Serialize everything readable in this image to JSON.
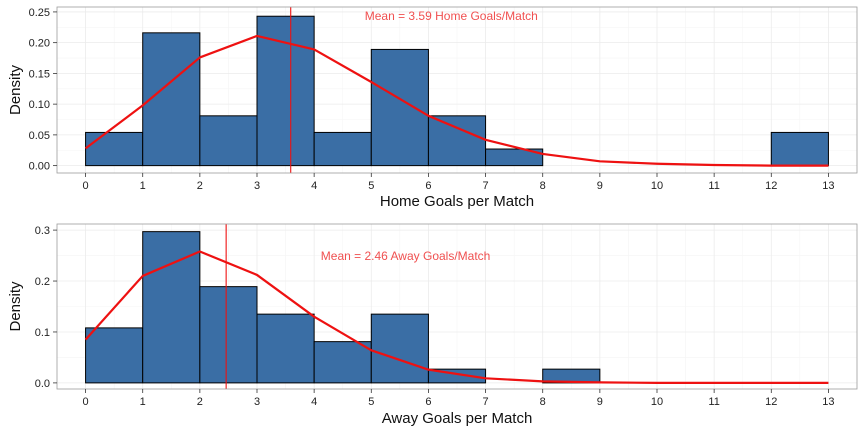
{
  "chart_data": [
    {
      "type": "bar",
      "xlabel": "Home Goals per Match",
      "ylabel": "Density",
      "xlim": [
        -0.5,
        13.5
      ],
      "ylim": [
        -0.012,
        0.258
      ],
      "x_ticks": [
        0,
        1,
        2,
        3,
        4,
        5,
        6,
        7,
        8,
        9,
        10,
        11,
        12,
        13
      ],
      "y_ticks": [
        0.0,
        0.05,
        0.1,
        0.15,
        0.2,
        0.25
      ],
      "y_tick_labels": [
        "0.00",
        "0.05",
        "0.10",
        "0.15",
        "0.20",
        "0.25"
      ],
      "histogram": {
        "bins": [
          {
            "from": 0,
            "to": 1,
            "density": 0.054
          },
          {
            "from": 1,
            "to": 2,
            "density": 0.216
          },
          {
            "from": 2,
            "to": 3,
            "density": 0.081
          },
          {
            "from": 3,
            "to": 4,
            "density": 0.243
          },
          {
            "from": 4,
            "to": 5,
            "density": 0.054
          },
          {
            "from": 5,
            "to": 6,
            "density": 0.189
          },
          {
            "from": 6,
            "to": 7,
            "density": 0.081
          },
          {
            "from": 7,
            "to": 8,
            "density": 0.027
          },
          {
            "from": 12,
            "to": 13,
            "density": 0.054
          }
        ]
      },
      "curve": {
        "x": [
          0,
          1,
          2,
          3,
          4,
          5,
          6,
          7,
          8,
          9,
          10,
          11,
          12,
          13
        ],
        "y": [
          0.028,
          0.098,
          0.176,
          0.211,
          0.189,
          0.136,
          0.081,
          0.042,
          0.019,
          0.007,
          0.003,
          0.001,
          0.0,
          0.0
        ]
      },
      "mean": 3.59,
      "annotation": "Mean = 3.59 Home Goals/Match",
      "annotation_x": 6.4,
      "grid": true,
      "colors": {
        "bar_fill": "#3a6ea5",
        "bar_stroke": "#000000",
        "curve": "#ee1111",
        "mean_line": "#ee1111",
        "annotation": "#f05050"
      }
    },
    {
      "type": "bar",
      "xlabel": "Away Goals per Match",
      "ylabel": "Density",
      "xlim": [
        -0.5,
        13.5
      ],
      "ylim": [
        -0.012,
        0.312
      ],
      "x_ticks": [
        0,
        1,
        2,
        3,
        4,
        5,
        6,
        7,
        8,
        9,
        10,
        11,
        12,
        13
      ],
      "y_ticks": [
        0.0,
        0.1,
        0.2,
        0.3
      ],
      "y_tick_labels": [
        "0.0",
        "0.1",
        "0.2",
        "0.3"
      ],
      "histogram": {
        "bins": [
          {
            "from": 0,
            "to": 1,
            "density": 0.108
          },
          {
            "from": 1,
            "to": 2,
            "density": 0.297
          },
          {
            "from": 2,
            "to": 3,
            "density": 0.189
          },
          {
            "from": 3,
            "to": 4,
            "density": 0.135
          },
          {
            "from": 4,
            "to": 5,
            "density": 0.081
          },
          {
            "from": 5,
            "to": 6,
            "density": 0.135
          },
          {
            "from": 6,
            "to": 7,
            "density": 0.027
          },
          {
            "from": 8,
            "to": 9,
            "density": 0.027
          }
        ]
      },
      "curve": {
        "x": [
          0,
          1,
          2,
          3,
          4,
          5,
          6,
          7,
          8,
          9,
          10,
          11,
          12,
          13
        ],
        "y": [
          0.085,
          0.21,
          0.258,
          0.212,
          0.13,
          0.064,
          0.026,
          0.009,
          0.003,
          0.001,
          0.0,
          0.0,
          0.0,
          0.0
        ]
      },
      "mean": 2.46,
      "annotation": "Mean = 2.46 Away Goals/Match",
      "annotation_x": 5.6,
      "grid": true,
      "colors": {
        "bar_fill": "#3a6ea5",
        "bar_stroke": "#000000",
        "curve": "#ee1111",
        "mean_line": "#ee1111",
        "annotation": "#f05050"
      }
    }
  ]
}
